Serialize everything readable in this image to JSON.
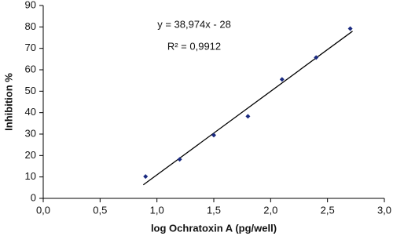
{
  "chart_data": {
    "type": "scatter",
    "x_label": "log Ochratoxin A (pg/well)",
    "y_label": "Inhibition  %",
    "annotations": [
      "y = 38,974x - 28",
      "R² = 0,9912"
    ],
    "x": [
      0.9,
      1.2,
      1.5,
      1.8,
      2.1,
      2.4,
      2.7
    ],
    "values": [
      10.2,
      18.2,
      29.5,
      38.3,
      55.5,
      65.7,
      79.2
    ],
    "color": "#1a2a80",
    "trendline": {
      "x": [
        0.88,
        2.72
      ],
      "values": [
        6.3,
        78.0
      ],
      "color": "#000000"
    },
    "xlim": [
      0,
      3
    ],
    "ylim": [
      0,
      90
    ],
    "xticks": [
      {
        "value": 0,
        "label": "0,0"
      },
      {
        "value": 0.5,
        "label": "0,5"
      },
      {
        "value": 1,
        "label": "1,0"
      },
      {
        "value": 1.5,
        "label": "1,5"
      },
      {
        "value": 2,
        "label": "2,0"
      },
      {
        "value": 2.5,
        "label": "2,5"
      },
      {
        "value": 3,
        "label": "3,0"
      }
    ],
    "yticks": [
      0,
      10,
      20,
      30,
      40,
      50,
      60,
      70,
      80,
      90
    ],
    "grid": false
  }
}
